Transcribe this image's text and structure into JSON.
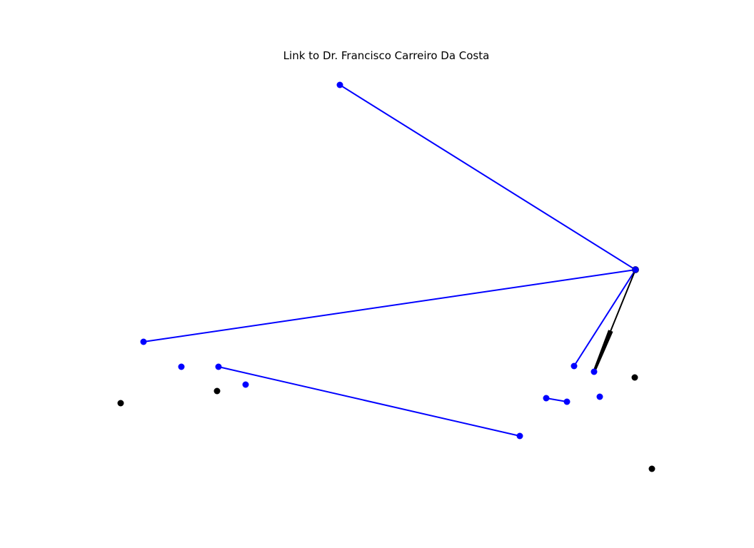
{
  "title": "Link to Dr. Francisco Carreiro Da Costa",
  "colors": {
    "blue": "#0000ff",
    "black": "#000000",
    "background": "#ffffff"
  },
  "nodes": [
    {
      "id": "n1",
      "color": "blue"
    },
    {
      "id": "hub",
      "color": "blue"
    },
    {
      "id": "n3",
      "color": "blue"
    },
    {
      "id": "n4",
      "color": "blue"
    },
    {
      "id": "n5",
      "color": "blue"
    },
    {
      "id": "n6",
      "color": "blue"
    },
    {
      "id": "n7",
      "color": "blue"
    },
    {
      "id": "n8",
      "color": "blue"
    },
    {
      "id": "n9",
      "color": "blue"
    },
    {
      "id": "n10",
      "color": "blue"
    },
    {
      "id": "n11",
      "color": "blue"
    },
    {
      "id": "n12",
      "color": "blue"
    },
    {
      "id": "b1",
      "color": "black"
    },
    {
      "id": "b2",
      "color": "black"
    },
    {
      "id": "b3",
      "color": "black"
    },
    {
      "id": "b4",
      "color": "black"
    }
  ],
  "edges": [
    {
      "from": "n1",
      "to": "hub",
      "color": "blue",
      "directed": false
    },
    {
      "from": "n3",
      "to": "hub",
      "color": "blue",
      "directed": false
    },
    {
      "from": "n9",
      "to": "hub",
      "color": "blue",
      "directed": false
    },
    {
      "from": "hub",
      "to": "n10",
      "color": "black",
      "directed": true
    },
    {
      "from": "n5",
      "to": "n8",
      "color": "blue",
      "directed": false
    },
    {
      "from": "n6",
      "to": "n7",
      "color": "blue",
      "directed": false
    }
  ]
}
